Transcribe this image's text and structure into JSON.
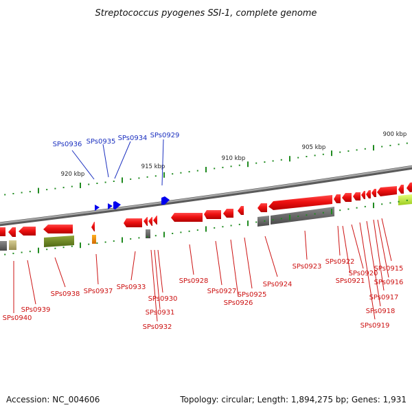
{
  "title": "Streptococcus pyogenes SSI-1, complete genome",
  "accession": "Accession: NC_004606",
  "summary": "Topology: circular; Length: 1,894,275 bp; Genes: 1,931",
  "colors": {
    "forward_gene": "#0000ee",
    "reverse_gene": "#ee1111",
    "backbone": "#8c8c8c",
    "tick": "#1f8a1f",
    "forward_label": "#1a2fbf",
    "reverse_label": "#cc1111"
  },
  "scale_labels": [
    "920 kbp",
    "915 kbp",
    "910 kbp",
    "905 kbp",
    "900 kbp"
  ],
  "forward_labels": [
    "SPs0936",
    "SPs0935",
    "SPs0934",
    "SPs0929"
  ],
  "reverse_labels": [
    "SPs0940",
    "SPs0939",
    "SPs0938",
    "SPs0937",
    "SPs0933",
    "SPs0932",
    "SPs0931",
    "SPs0930",
    "SPs0928",
    "SPs0927",
    "SPs0926",
    "SPs0925",
    "SPs0924",
    "SPs0923",
    "SPs0922",
    "SPs0921",
    "SPs0920",
    "SPs0919",
    "SPs0918",
    "SPs0917",
    "SPs0916",
    "SPs0915"
  ]
}
